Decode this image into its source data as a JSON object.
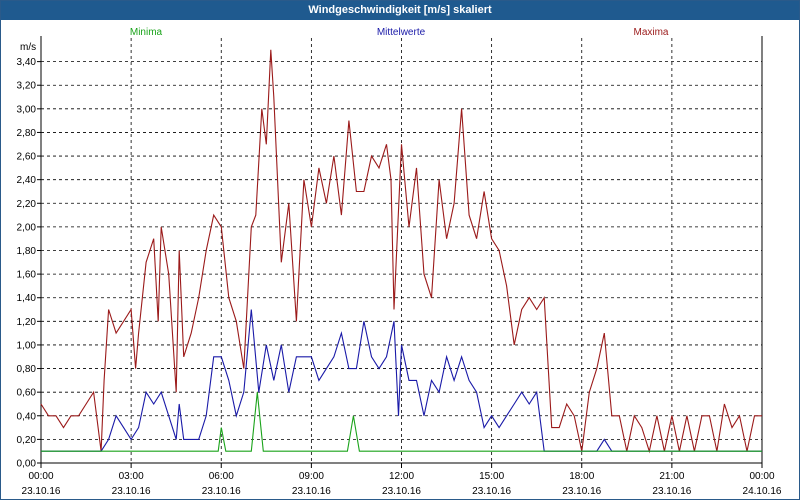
{
  "window": {
    "title": "Windgeschwindigkeit [m/s] skaliert"
  },
  "legend": [
    {
      "name": "Minima",
      "color": "#1aa31a"
    },
    {
      "name": "Mittelwerte",
      "color": "#1a1aa8"
    },
    {
      "name": "Maxima",
      "color": "#9b1a1a"
    }
  ],
  "chart_data": {
    "type": "line",
    "title": "Windgeschwindigkeit [m/s] skaliert",
    "ylabel": "m/s",
    "xlabel": "",
    "ylim": [
      0,
      3.5
    ],
    "xlim_hours": [
      0,
      24
    ],
    "grid": true,
    "legend_placement": "top",
    "y_ticks": [
      "0,00",
      "0,20",
      "0,40",
      "0,60",
      "0,80",
      "1,00",
      "1,20",
      "1,40",
      "1,60",
      "1,80",
      "2,00",
      "2,20",
      "2,40",
      "2,60",
      "2,80",
      "3,00",
      "3,20",
      "3,40"
    ],
    "x_ticks": [
      {
        "time": "00:00",
        "date": "23.10.16"
      },
      {
        "time": "03:00",
        "date": "23.10.16"
      },
      {
        "time": "06:00",
        "date": "23.10.16"
      },
      {
        "time": "09:00",
        "date": "23.10.16"
      },
      {
        "time": "12:00",
        "date": "23.10.16"
      },
      {
        "time": "15:00",
        "date": "23.10.16"
      },
      {
        "time": "18:00",
        "date": "23.10.16"
      },
      {
        "time": "21:00",
        "date": "23.10.16"
      },
      {
        "time": "00:00",
        "date": "24.10.16"
      }
    ],
    "series": [
      {
        "name": "Maxima",
        "color": "#9b1a1a",
        "x": [
          0,
          0.25,
          0.5,
          0.75,
          1,
          1.25,
          1.5,
          1.75,
          2,
          2.1,
          2.25,
          2.5,
          2.75,
          3,
          3.15,
          3.25,
          3.5,
          3.75,
          3.9,
          4,
          4.25,
          4.5,
          4.6,
          4.75,
          5,
          5.25,
          5.5,
          5.75,
          6,
          6.25,
          6.5,
          6.75,
          7,
          7.15,
          7.35,
          7.5,
          7.65,
          7.75,
          8,
          8.25,
          8.5,
          8.75,
          9,
          9.25,
          9.5,
          9.75,
          10,
          10.25,
          10.5,
          10.75,
          11,
          11.25,
          11.5,
          11.65,
          11.75,
          12,
          12.25,
          12.5,
          12.75,
          13,
          13.25,
          13.5,
          13.75,
          14,
          14.25,
          14.5,
          14.75,
          15,
          15.25,
          15.5,
          15.75,
          16,
          16.25,
          16.5,
          16.75,
          17,
          17.25,
          17.5,
          17.75,
          18,
          18.25,
          18.5,
          18.75,
          19,
          19.25,
          19.5,
          19.75,
          20,
          20.25,
          20.5,
          20.75,
          21,
          21.25,
          21.5,
          21.75,
          22,
          22.25,
          22.5,
          22.75,
          23,
          23.25,
          23.5,
          23.75,
          24
        ],
        "values": [
          0.5,
          0.4,
          0.4,
          0.3,
          0.4,
          0.4,
          0.5,
          0.6,
          0.1,
          0.7,
          1.3,
          1.1,
          1.2,
          1.3,
          0.8,
          1.1,
          1.7,
          1.9,
          1.2,
          2.0,
          1.6,
          0.6,
          1.8,
          0.9,
          1.1,
          1.4,
          1.8,
          2.1,
          2.0,
          1.4,
          1.2,
          0.8,
          2.0,
          2.1,
          3.0,
          2.7,
          3.5,
          3.1,
          1.7,
          2.2,
          1.2,
          2.4,
          2.0,
          2.5,
          2.2,
          2.6,
          2.1,
          2.9,
          2.3,
          2.3,
          2.6,
          2.5,
          2.7,
          2.4,
          1.3,
          2.7,
          2.0,
          2.5,
          1.6,
          1.4,
          2.4,
          1.9,
          2.2,
          3.0,
          2.1,
          1.9,
          2.3,
          1.9,
          1.8,
          1.5,
          1.0,
          1.3,
          1.4,
          1.3,
          1.4,
          0.3,
          0.3,
          0.5,
          0.4,
          0.1,
          0.6,
          0.8,
          1.1,
          0.4,
          0.4,
          0.1,
          0.4,
          0.3,
          0.1,
          0.4,
          0.1,
          0.4,
          0.1,
          0.4,
          0.1,
          0.4,
          0.4,
          0.1,
          0.5,
          0.3,
          0.4,
          0.1,
          0.4,
          0.4
        ]
      },
      {
        "name": "Mittelwerte",
        "color": "#1a1aa8",
        "x": [
          0,
          2,
          2.25,
          2.5,
          2.75,
          3,
          3.25,
          3.5,
          3.75,
          4,
          4.25,
          4.5,
          4.6,
          4.75,
          5,
          5.25,
          5.5,
          5.75,
          6,
          6.25,
          6.5,
          6.75,
          7,
          7.25,
          7.5,
          7.75,
          8,
          8.25,
          8.5,
          8.75,
          9,
          9.25,
          9.5,
          9.75,
          10,
          10.25,
          10.5,
          10.75,
          11,
          11.25,
          11.5,
          11.75,
          11.9,
          12,
          12.25,
          12.5,
          12.75,
          13,
          13.25,
          13.5,
          13.75,
          14,
          14.25,
          14.5,
          14.75,
          15,
          15.25,
          15.5,
          15.75,
          16,
          16.25,
          16.5,
          16.75,
          17,
          17.25,
          17.5,
          17.75,
          18,
          18.25,
          18.5,
          18.75,
          19,
          19.25,
          24
        ],
        "values": [
          0.1,
          0.1,
          0.2,
          0.4,
          0.3,
          0.2,
          0.3,
          0.6,
          0.5,
          0.6,
          0.4,
          0.2,
          0.5,
          0.2,
          0.2,
          0.2,
          0.4,
          0.9,
          0.9,
          0.7,
          0.4,
          0.6,
          1.3,
          0.6,
          1.0,
          0.7,
          1.0,
          0.6,
          0.9,
          0.9,
          0.9,
          0.7,
          0.8,
          0.9,
          1.1,
          0.8,
          0.8,
          1.2,
          0.9,
          0.8,
          0.9,
          1.2,
          0.4,
          1.0,
          0.7,
          0.7,
          0.4,
          0.7,
          0.6,
          0.9,
          0.7,
          0.9,
          0.7,
          0.6,
          0.3,
          0.4,
          0.3,
          0.4,
          0.5,
          0.6,
          0.5,
          0.6,
          0.1,
          0.1,
          0.1,
          0.1,
          0.1,
          0.1,
          0.1,
          0.1,
          0.2,
          0.1,
          0.1,
          0.1
        ]
      },
      {
        "name": "Minima",
        "color": "#1aa31a",
        "x": [
          0,
          5.9,
          6,
          6.15,
          7,
          7.2,
          7.4,
          10.2,
          10.4,
          10.6,
          24
        ],
        "values": [
          0.1,
          0.1,
          0.3,
          0.1,
          0.1,
          0.6,
          0.1,
          0.1,
          0.4,
          0.1,
          0.1
        ]
      }
    ]
  }
}
